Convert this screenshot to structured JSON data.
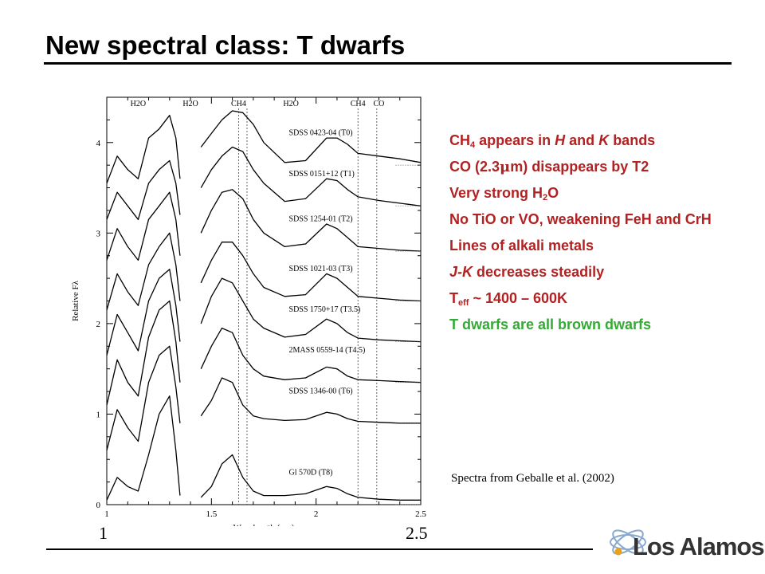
{
  "slide": {
    "title": "New spectral class: T dwarfs",
    "bullets": [
      {
        "parts": [
          {
            "t": "CH"
          },
          {
            "t": "4",
            "sub": true
          },
          {
            "t": " appears in "
          },
          {
            "t": "H",
            "i": true
          },
          {
            "t": " and "
          },
          {
            "t": "K",
            "i": true
          },
          {
            "t": " bands"
          }
        ]
      },
      {
        "parts": [
          {
            "t": "CO (2.3"
          },
          {
            "t": "μ",
            "sym": true
          },
          {
            "t": "m) disappears by T2"
          }
        ]
      },
      {
        "parts": [
          {
            "t": "Very strong H"
          },
          {
            "t": "2",
            "sub": true
          },
          {
            "t": "O"
          }
        ]
      },
      {
        "parts": [
          {
            "t": "No TiO or VO, weakening FeH and CrH"
          }
        ]
      },
      {
        "parts": [
          {
            "t": "Lines of alkali metals"
          }
        ]
      },
      {
        "parts": [
          {
            "t": "J-K",
            "i": true
          },
          {
            "t": " decreases steadily"
          }
        ]
      },
      {
        "parts": [
          {
            "t": "T"
          },
          {
            "t": "eff",
            "sub": true
          },
          {
            "t": " ~ 1400 – 600K"
          }
        ]
      },
      {
        "parts": [
          {
            "t": "T dwarfs are all brown dwarfs"
          }
        ],
        "color": "green"
      }
    ],
    "credit": "Spectra from Geballe et al. (2002)",
    "big_tick_left": "1",
    "big_tick_right": "2.5",
    "logo_text": "Los Alamos",
    "colors": {
      "bullet": "#b22222",
      "highlight": "#33aa33",
      "text": "#000000"
    }
  },
  "chart_data": {
    "type": "line",
    "xlabel": "Wavelength (μm)",
    "ylabel": "Relative Fλ",
    "xlim": [
      1.0,
      2.5
    ],
    "ylim": [
      0,
      4.5
    ],
    "x_ticks": [
      "1",
      "1.5",
      "2",
      "2.5"
    ],
    "y_ticks": [
      "0",
      "1",
      "2",
      "3",
      "4"
    ],
    "features": [
      {
        "label": "H2O",
        "x": 1.15
      },
      {
        "label": "H2O",
        "x": 1.4
      },
      {
        "label": "CH4",
        "x": 1.63
      },
      {
        "label": "H2O",
        "x": 1.88
      },
      {
        "label": "CH4",
        "x": 2.2
      },
      {
        "label": "CO",
        "x": 2.3
      }
    ],
    "ch4_lines_x": [
      1.63,
      1.67
    ],
    "co_lines_x": [
      2.2,
      2.29
    ],
    "gap": [
      1.35,
      1.45
    ],
    "series": [
      {
        "name": "SDSS 0423-04 (T0)",
        "offset": 3.75,
        "points": [
          [
            1.0,
            3.55
          ],
          [
            1.05,
            3.85
          ],
          [
            1.1,
            3.7
          ],
          [
            1.15,
            3.6
          ],
          [
            1.2,
            4.05
          ],
          [
            1.25,
            4.15
          ],
          [
            1.3,
            4.3
          ],
          [
            1.33,
            4.05
          ],
          [
            1.35,
            3.6
          ],
          [
            1.45,
            3.95
          ],
          [
            1.5,
            4.1
          ],
          [
            1.55,
            4.25
          ],
          [
            1.6,
            4.35
          ],
          [
            1.65,
            4.33
          ],
          [
            1.7,
            4.2
          ],
          [
            1.75,
            4.0
          ],
          [
            1.85,
            3.78
          ],
          [
            1.95,
            3.8
          ],
          [
            2.05,
            4.05
          ],
          [
            2.1,
            4.05
          ],
          [
            2.15,
            3.98
          ],
          [
            2.2,
            3.88
          ],
          [
            2.3,
            3.85
          ],
          [
            2.4,
            3.82
          ],
          [
            2.5,
            3.78
          ]
        ]
      },
      {
        "name": "SDSS 0151+12 (T1)",
        "offset": 3.3,
        "points": [
          [
            1.0,
            3.15
          ],
          [
            1.05,
            3.45
          ],
          [
            1.1,
            3.3
          ],
          [
            1.15,
            3.15
          ],
          [
            1.2,
            3.55
          ],
          [
            1.25,
            3.7
          ],
          [
            1.3,
            3.8
          ],
          [
            1.33,
            3.55
          ],
          [
            1.35,
            3.2
          ],
          [
            1.45,
            3.5
          ],
          [
            1.5,
            3.7
          ],
          [
            1.55,
            3.85
          ],
          [
            1.6,
            3.95
          ],
          [
            1.65,
            3.9
          ],
          [
            1.7,
            3.7
          ],
          [
            1.75,
            3.55
          ],
          [
            1.85,
            3.35
          ],
          [
            1.95,
            3.38
          ],
          [
            2.05,
            3.6
          ],
          [
            2.1,
            3.58
          ],
          [
            2.15,
            3.48
          ],
          [
            2.2,
            3.4
          ],
          [
            2.3,
            3.36
          ],
          [
            2.4,
            3.33
          ],
          [
            2.5,
            3.3
          ]
        ]
      },
      {
        "name": "SDSS 1254-01 (T2)",
        "offset": 2.8,
        "points": [
          [
            1.0,
            2.7
          ],
          [
            1.05,
            3.05
          ],
          [
            1.1,
            2.85
          ],
          [
            1.15,
            2.7
          ],
          [
            1.2,
            3.15
          ],
          [
            1.25,
            3.3
          ],
          [
            1.3,
            3.45
          ],
          [
            1.33,
            3.15
          ],
          [
            1.35,
            2.75
          ],
          [
            1.45,
            3.0
          ],
          [
            1.5,
            3.25
          ],
          [
            1.55,
            3.45
          ],
          [
            1.6,
            3.48
          ],
          [
            1.65,
            3.38
          ],
          [
            1.7,
            3.15
          ],
          [
            1.75,
            3.0
          ],
          [
            1.85,
            2.85
          ],
          [
            1.95,
            2.88
          ],
          [
            2.05,
            3.1
          ],
          [
            2.1,
            3.05
          ],
          [
            2.15,
            2.95
          ],
          [
            2.2,
            2.85
          ],
          [
            2.3,
            2.83
          ],
          [
            2.4,
            2.81
          ],
          [
            2.5,
            2.8
          ]
        ]
      },
      {
        "name": "SDSS 1021-03 (T3)",
        "offset": 2.25,
        "points": [
          [
            1.0,
            2.15
          ],
          [
            1.05,
            2.55
          ],
          [
            1.1,
            2.35
          ],
          [
            1.15,
            2.2
          ],
          [
            1.2,
            2.65
          ],
          [
            1.25,
            2.85
          ],
          [
            1.3,
            3.0
          ],
          [
            1.33,
            2.65
          ],
          [
            1.35,
            2.25
          ],
          [
            1.45,
            2.45
          ],
          [
            1.5,
            2.7
          ],
          [
            1.55,
            2.9
          ],
          [
            1.6,
            2.9
          ],
          [
            1.65,
            2.75
          ],
          [
            1.7,
            2.55
          ],
          [
            1.75,
            2.4
          ],
          [
            1.85,
            2.3
          ],
          [
            1.95,
            2.32
          ],
          [
            2.05,
            2.55
          ],
          [
            2.1,
            2.5
          ],
          [
            2.15,
            2.4
          ],
          [
            2.2,
            2.3
          ],
          [
            2.3,
            2.28
          ],
          [
            2.4,
            2.26
          ],
          [
            2.5,
            2.25
          ]
        ]
      },
      {
        "name": "SDSS 1750+17 (T3.5)",
        "offset": 1.8,
        "points": [
          [
            1.0,
            1.65
          ],
          [
            1.05,
            2.1
          ],
          [
            1.1,
            1.9
          ],
          [
            1.15,
            1.7
          ],
          [
            1.2,
            2.25
          ],
          [
            1.25,
            2.5
          ],
          [
            1.3,
            2.6
          ],
          [
            1.33,
            2.2
          ],
          [
            1.35,
            1.8
          ],
          [
            1.45,
            2.0
          ],
          [
            1.5,
            2.3
          ],
          [
            1.55,
            2.5
          ],
          [
            1.6,
            2.45
          ],
          [
            1.65,
            2.25
          ],
          [
            1.7,
            2.05
          ],
          [
            1.75,
            1.95
          ],
          [
            1.85,
            1.85
          ],
          [
            1.95,
            1.88
          ],
          [
            2.05,
            2.05
          ],
          [
            2.1,
            2.0
          ],
          [
            2.15,
            1.9
          ],
          [
            2.2,
            1.84
          ],
          [
            2.3,
            1.82
          ],
          [
            2.4,
            1.81
          ],
          [
            2.5,
            1.8
          ]
        ]
      },
      {
        "name": "2MASS 0559-14 (T4.5)",
        "offset": 1.35,
        "points": [
          [
            1.0,
            1.1
          ],
          [
            1.05,
            1.6
          ],
          [
            1.1,
            1.35
          ],
          [
            1.15,
            1.2
          ],
          [
            1.2,
            1.85
          ],
          [
            1.25,
            2.15
          ],
          [
            1.3,
            2.25
          ],
          [
            1.33,
            1.8
          ],
          [
            1.35,
            1.35
          ],
          [
            1.45,
            1.5
          ],
          [
            1.5,
            1.75
          ],
          [
            1.55,
            1.95
          ],
          [
            1.6,
            1.9
          ],
          [
            1.65,
            1.65
          ],
          [
            1.7,
            1.5
          ],
          [
            1.75,
            1.42
          ],
          [
            1.85,
            1.38
          ],
          [
            1.95,
            1.4
          ],
          [
            2.05,
            1.52
          ],
          [
            2.1,
            1.5
          ],
          [
            2.15,
            1.42
          ],
          [
            2.2,
            1.38
          ],
          [
            2.3,
            1.37
          ],
          [
            2.4,
            1.36
          ],
          [
            2.5,
            1.35
          ]
        ]
      },
      {
        "name": "SDSS 1346-00 (T6)",
        "offset": 0.9,
        "points": [
          [
            1.0,
            0.6
          ],
          [
            1.05,
            1.05
          ],
          [
            1.1,
            0.85
          ],
          [
            1.15,
            0.7
          ],
          [
            1.2,
            1.35
          ],
          [
            1.25,
            1.65
          ],
          [
            1.3,
            1.75
          ],
          [
            1.33,
            1.3
          ],
          [
            1.35,
            0.9
          ],
          [
            1.45,
            0.98
          ],
          [
            1.5,
            1.15
          ],
          [
            1.55,
            1.4
          ],
          [
            1.6,
            1.35
          ],
          [
            1.65,
            1.1
          ],
          [
            1.7,
            0.98
          ],
          [
            1.75,
            0.95
          ],
          [
            1.85,
            0.93
          ],
          [
            1.95,
            0.94
          ],
          [
            2.05,
            1.02
          ],
          [
            2.1,
            1.0
          ],
          [
            2.15,
            0.95
          ],
          [
            2.2,
            0.92
          ],
          [
            2.3,
            0.91
          ],
          [
            2.4,
            0.9
          ],
          [
            2.5,
            0.9
          ]
        ]
      },
      {
        "name": "Gl 570D (T8)",
        "offset": 0.0,
        "points": [
          [
            1.0,
            0.05
          ],
          [
            1.05,
            0.3
          ],
          [
            1.1,
            0.2
          ],
          [
            1.15,
            0.15
          ],
          [
            1.2,
            0.55
          ],
          [
            1.25,
            1.0
          ],
          [
            1.3,
            1.2
          ],
          [
            1.33,
            0.6
          ],
          [
            1.35,
            0.1
          ],
          [
            1.45,
            0.08
          ],
          [
            1.5,
            0.2
          ],
          [
            1.55,
            0.45
          ],
          [
            1.6,
            0.55
          ],
          [
            1.65,
            0.3
          ],
          [
            1.7,
            0.15
          ],
          [
            1.75,
            0.1
          ],
          [
            1.85,
            0.1
          ],
          [
            1.95,
            0.12
          ],
          [
            2.05,
            0.2
          ],
          [
            2.1,
            0.18
          ],
          [
            2.15,
            0.12
          ],
          [
            2.2,
            0.08
          ],
          [
            2.3,
            0.06
          ],
          [
            2.4,
            0.05
          ],
          [
            2.5,
            0.05
          ]
        ]
      }
    ]
  }
}
